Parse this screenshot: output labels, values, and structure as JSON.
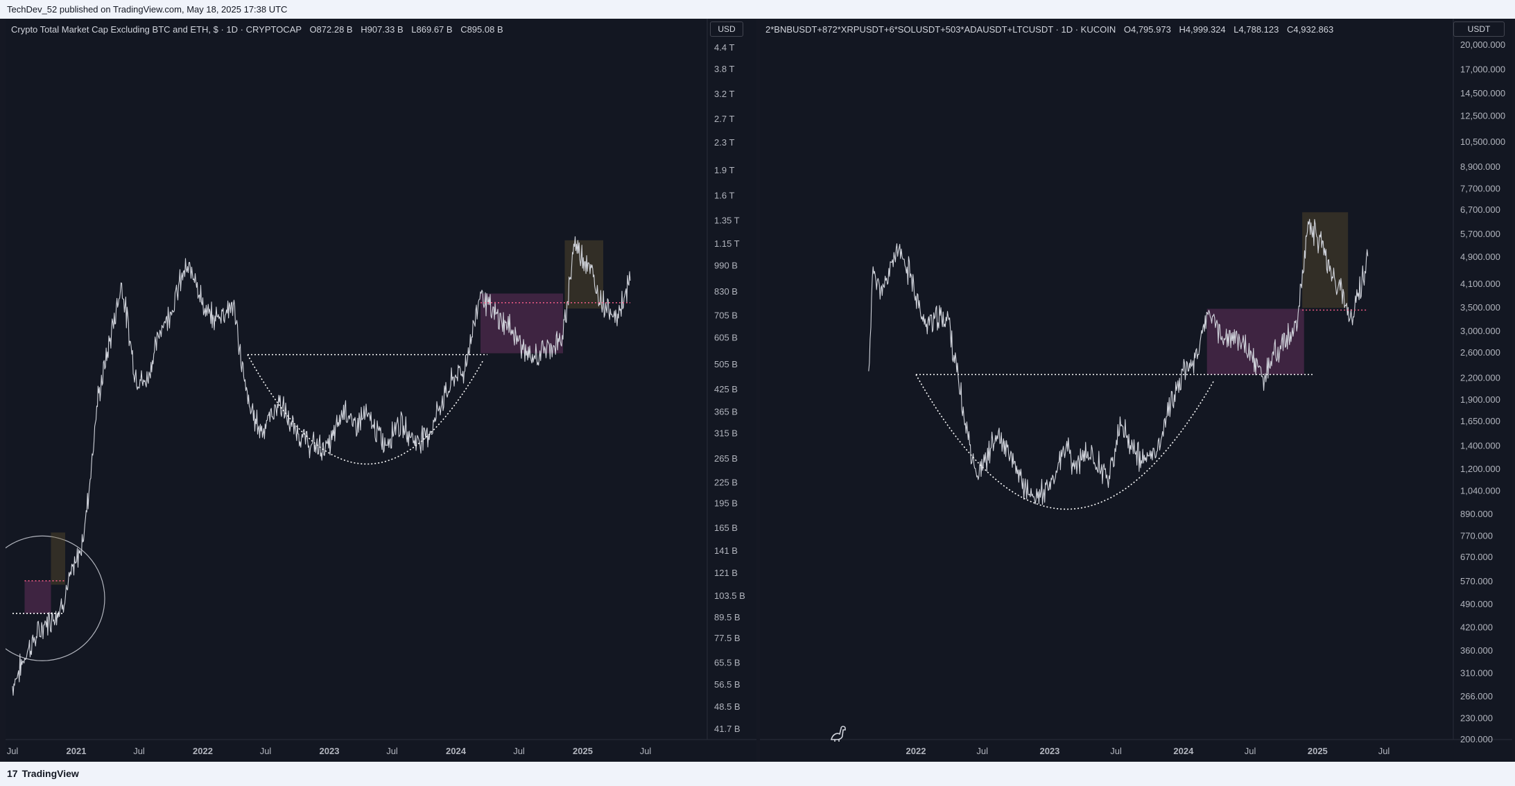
{
  "header": {
    "published": "TechDev_52 published on TradingView.com, May 18, 2025 17:38 UTC"
  },
  "footer": {
    "brand": "TradingView"
  },
  "panes": [
    {
      "title": "Crypto Total Market Cap Excluding BTC and ETH, $ · 1D · CRYPTOCAP",
      "ohlc": [
        "O872.28 B",
        "H907.33 B",
        "L869.67 B",
        "C895.08 B"
      ],
      "currency": "USD"
    },
    {
      "title": "2*BNBUSDT+872*XRPUSDT+6*SOLUSDT+503*ADAUSDT+LTCUSDT · 1D · KUCOIN",
      "ohlc": [
        "O4,795.973",
        "H4,999.324",
        "L4,788.123",
        "C4,932.863"
      ],
      "currency": "USDT"
    }
  ],
  "chart_data": [
    {
      "type": "line",
      "title": "Crypto Total Market Cap Excluding BTC and ETH, $ · 1D · CRYPTOCAP",
      "y_scale": "log",
      "ylim": [
        "41.7 B",
        "4.4 T"
      ],
      "y_ticks": [
        "4.4 T",
        "3.8 T",
        "3.2 T",
        "2.7 T",
        "2.3 T",
        "1.9 T",
        "1.6 T",
        "1.35 T",
        "1.15 T",
        "990 B",
        "830 B",
        "705 B",
        "605 B",
        "505 B",
        "425 B",
        "365 B",
        "315 B",
        "265 B",
        "225 B",
        "195 B",
        "165 B",
        "141 B",
        "121 B",
        "103.5 B",
        "89.5 B",
        "77.5 B",
        "65.5 B",
        "56.5 B",
        "48.5 B",
        "41.7 B"
      ],
      "x_ticks": [
        "Jul",
        "2021",
        "Jul",
        "2022",
        "Jul",
        "2023",
        "Jul",
        "2024",
        "Jul",
        "2025",
        "Jul"
      ],
      "x_ticks_bold": [
        "2021",
        "2022",
        "2023",
        "2024",
        "2025"
      ],
      "series": [
        {
          "dates": [
            "2020-07-01",
            "2020-08-15",
            "2020-10-01",
            "2020-11-15",
            "2020-12-31",
            "2021-01-20",
            "2021-02-10",
            "2021-03-01",
            "2021-04-01",
            "2021-05-12",
            "2021-06-20",
            "2021-07-20",
            "2021-09-05",
            "2021-10-01",
            "2021-11-08",
            "2021-12-10",
            "2022-01-05",
            "2022-02-01",
            "2022-03-30",
            "2022-05-01",
            "2022-05-15",
            "2022-06-18",
            "2022-08-10",
            "2022-09-15",
            "2022-11-09",
            "2022-12-30",
            "2023-02-15",
            "2023-03-10",
            "2023-04-15",
            "2023-06-12",
            "2023-07-15",
            "2023-09-10",
            "2023-10-20",
            "2023-11-15",
            "2023-12-31",
            "2024-01-25",
            "2024-03-12",
            "2024-04-15",
            "2024-06-10",
            "2024-08-05",
            "2024-09-15",
            "2024-11-05",
            "2024-12-06",
            "2025-01-20",
            "2025-02-10",
            "2025-04-08",
            "2025-05-18"
          ],
          "values": [
            56,
            72,
            85,
            95,
            130,
            150,
            230,
            380,
            550,
            880,
            470,
            440,
            660,
            720,
            960,
            940,
            720,
            690,
            760,
            450,
            380,
            320,
            390,
            330,
            290,
            285,
            380,
            330,
            360,
            290,
            340,
            300,
            320,
            380,
            470,
            480,
            830,
            720,
            640,
            520,
            560,
            600,
            1150,
            1000,
            820,
            700,
            895
          ]
        }
      ],
      "annotations": [
        {
          "type": "dotted-line",
          "color": "#ffffff",
          "y": "540 B",
          "x_range": [
            "2022-05-10",
            "2024-04-01"
          ]
        },
        {
          "type": "dotted-curve",
          "label": "cup",
          "color": "#ffffff",
          "y_bottom": "258 B",
          "x_range": [
            "2022-05-10",
            "2024-03-20"
          ]
        },
        {
          "type": "box",
          "color": "#8e3d7c",
          "x_range": [
            "2024-03-12",
            "2024-11-05"
          ],
          "y_range": [
            "545 B",
            "820 B"
          ]
        },
        {
          "type": "box",
          "color": "#6e5a2e",
          "x_range": [
            "2024-11-10",
            "2025-03-01"
          ],
          "y_range": [
            "740 B",
            "1180 B"
          ]
        },
        {
          "type": "dotted-line",
          "color": "#f05c86",
          "y": "770 B",
          "x_range": [
            "2024-03-12",
            "2025-05-18"
          ]
        },
        {
          "type": "circle",
          "color": "#b2b5be",
          "center": [
            "2020-09-25",
            "102 B"
          ]
        },
        {
          "type": "box",
          "color": "#8e3d7c",
          "x_range": [
            "2020-08-05",
            "2020-10-20"
          ],
          "y_range": [
            "92 B",
            "115 B"
          ]
        },
        {
          "type": "box",
          "color": "#6e5a2e",
          "x_range": [
            "2020-10-20",
            "2020-11-30"
          ],
          "y_range": [
            "112 B",
            "160 B"
          ]
        },
        {
          "type": "dotted-line",
          "color": "#f05c86",
          "y": "115 B",
          "x_range": [
            "2020-08-05",
            "2020-12-01"
          ]
        },
        {
          "type": "dotted-line",
          "color": "#ffffff",
          "y": "92 B",
          "x_range": [
            "2020-07-01",
            "2020-11-25"
          ]
        }
      ]
    },
    {
      "type": "line",
      "title": "2*BNBUSDT+872*XRPUSDT+6*SOLUSDT+503*ADAUSDT+LTCUSDT · 1D · KUCOIN",
      "y_scale": "log",
      "ylim": [
        "200.000",
        "20,000.000"
      ],
      "y_ticks": [
        "20,000.000",
        "17,000.000",
        "14,500.000",
        "12,500.000",
        "10,500.000",
        "8,900.000",
        "7,700.000",
        "6,700.000",
        "5,700.000",
        "4,900.000",
        "4,100.000",
        "3,500.000",
        "3,000.000",
        "2,600.000",
        "2,200.000",
        "1,900.000",
        "1,650.000",
        "1,400.000",
        "1,200.000",
        "1,040.000",
        "890.000",
        "770.000",
        "670.000",
        "570.000",
        "490.000",
        "420.000",
        "360.000",
        "310.000",
        "266.000",
        "230.000",
        "200.000"
      ],
      "x_ticks": [
        "2022",
        "Jul",
        "2023",
        "Jul",
        "2024",
        "Jul",
        "2025",
        "Jul"
      ],
      "x_ticks_bold": [
        "2022",
        "2023",
        "2024",
        "2025"
      ],
      "series": [
        {
          "dates": [
            "2021-08-25",
            "2021-09-06",
            "2021-10-01",
            "2021-11-08",
            "2021-12-20",
            "2022-01-20",
            "2022-03-30",
            "2022-05-12",
            "2022-06-18",
            "2022-08-10",
            "2022-09-15",
            "2022-11-09",
            "2022-12-30",
            "2023-02-15",
            "2023-03-10",
            "2023-04-15",
            "2023-06-12",
            "2023-07-14",
            "2023-09-10",
            "2023-10-20",
            "2023-11-15",
            "2023-12-31",
            "2024-01-25",
            "2024-03-12",
            "2024-04-15",
            "2024-06-10",
            "2024-08-05",
            "2024-09-15",
            "2024-11-05",
            "2024-12-06",
            "2025-01-20",
            "2025-02-10",
            "2025-04-08",
            "2025-05-18"
          ],
          "values": [
            2300,
            4600,
            3800,
            5200,
            4300,
            3200,
            3300,
            1700,
            1150,
            1500,
            1300,
            1000,
            1050,
            1400,
            1200,
            1350,
            1150,
            1600,
            1250,
            1350,
            1700,
            2300,
            2400,
            3400,
            2900,
            2800,
            2200,
            2700,
            3000,
            6200,
            5200,
            4300,
            3300,
            4933
          ]
        }
      ],
      "annotations": [
        {
          "type": "dotted-line",
          "color": "#ffffff",
          "y": "2,250.000",
          "x_range": [
            "2022-01-01",
            "2024-12-20"
          ]
        },
        {
          "type": "dotted-curve",
          "label": "cup",
          "color": "#ffffff",
          "y_bottom": "930.000",
          "x_range": [
            "2022-01-01",
            "2024-03-25"
          ]
        },
        {
          "type": "box",
          "color": "#8e3d7c",
          "x_range": [
            "2024-03-05",
            "2024-11-25"
          ],
          "y_range": [
            "2,250.000",
            "3,480.000"
          ]
        },
        {
          "type": "box",
          "color": "#6e5a2e",
          "x_range": [
            "2024-11-20",
            "2025-03-25"
          ],
          "y_range": [
            "3,500.000",
            "6,600.000"
          ]
        },
        {
          "type": "dotted-line",
          "color": "#f05c86",
          "y": "3,450.000",
          "x_range": [
            "2024-11-20",
            "2025-05-18"
          ]
        }
      ]
    }
  ]
}
